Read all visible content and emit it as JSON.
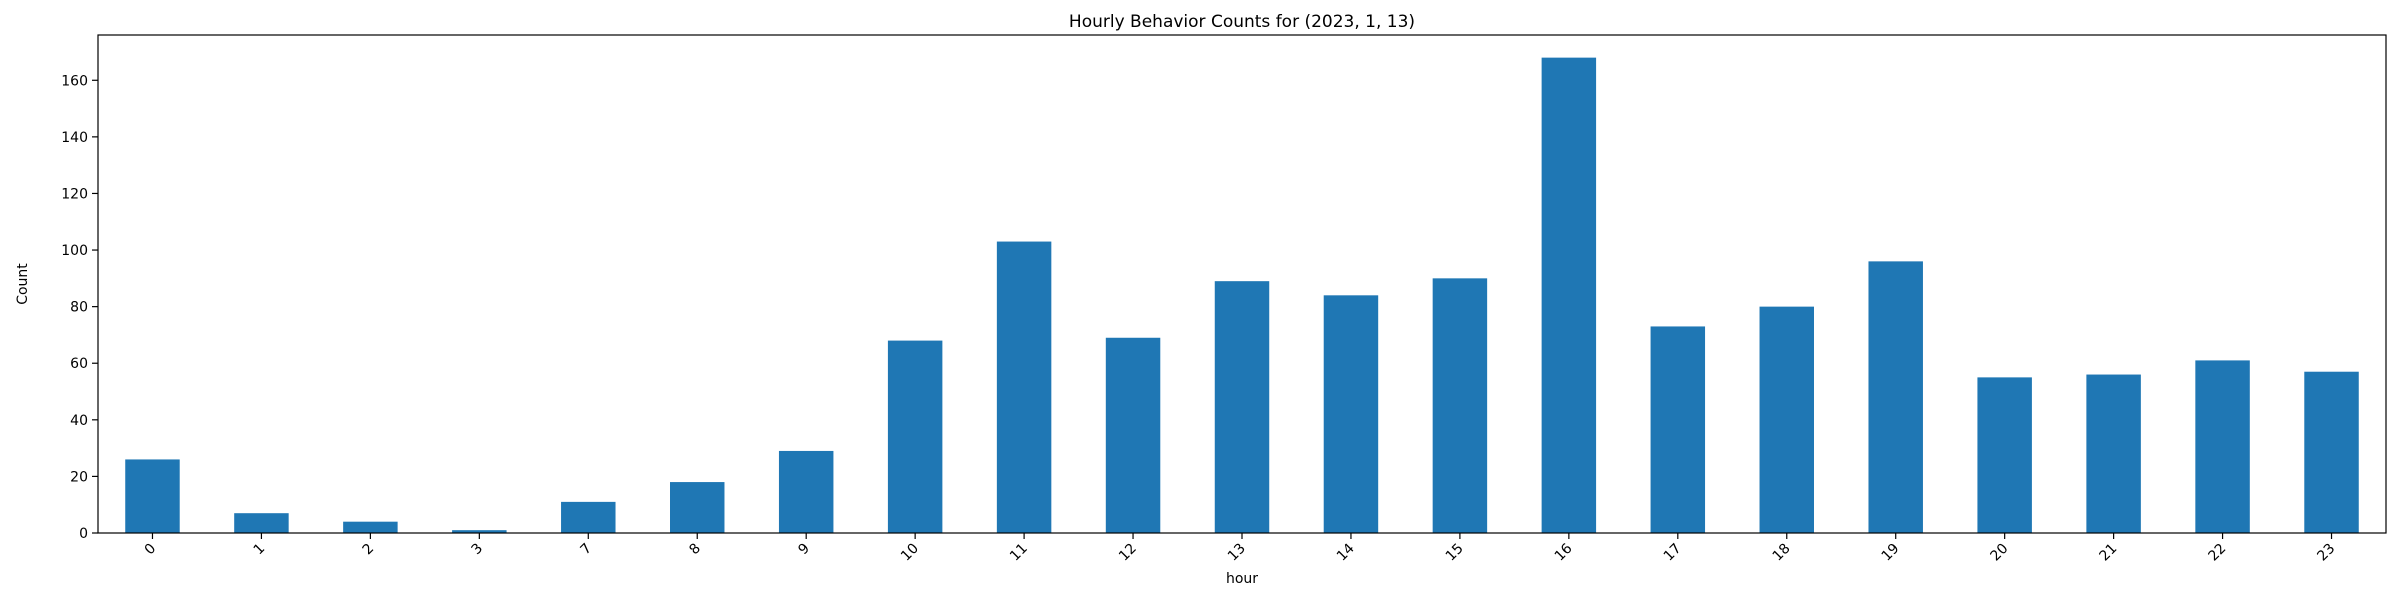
{
  "chart_data": {
    "type": "bar",
    "title": "Hourly Behavior Counts for (2023, 1, 13)",
    "xlabel": "hour",
    "ylabel": "Count",
    "categories": [
      "0",
      "1",
      "2",
      "3",
      "7",
      "8",
      "9",
      "10",
      "11",
      "12",
      "13",
      "14",
      "15",
      "16",
      "17",
      "18",
      "19",
      "20",
      "21",
      "22",
      "23"
    ],
    "values": [
      26,
      7,
      4,
      1,
      11,
      18,
      29,
      68,
      103,
      69,
      89,
      84,
      90,
      168,
      73,
      80,
      96,
      55,
      56,
      61,
      57
    ],
    "ylim": [
      0,
      176
    ],
    "yticks": [
      0,
      20,
      40,
      60,
      80,
      100,
      120,
      140,
      160
    ],
    "bar_color": "#1f77b4",
    "grid": false,
    "legend": "none",
    "x_tick_rotation": -45
  }
}
